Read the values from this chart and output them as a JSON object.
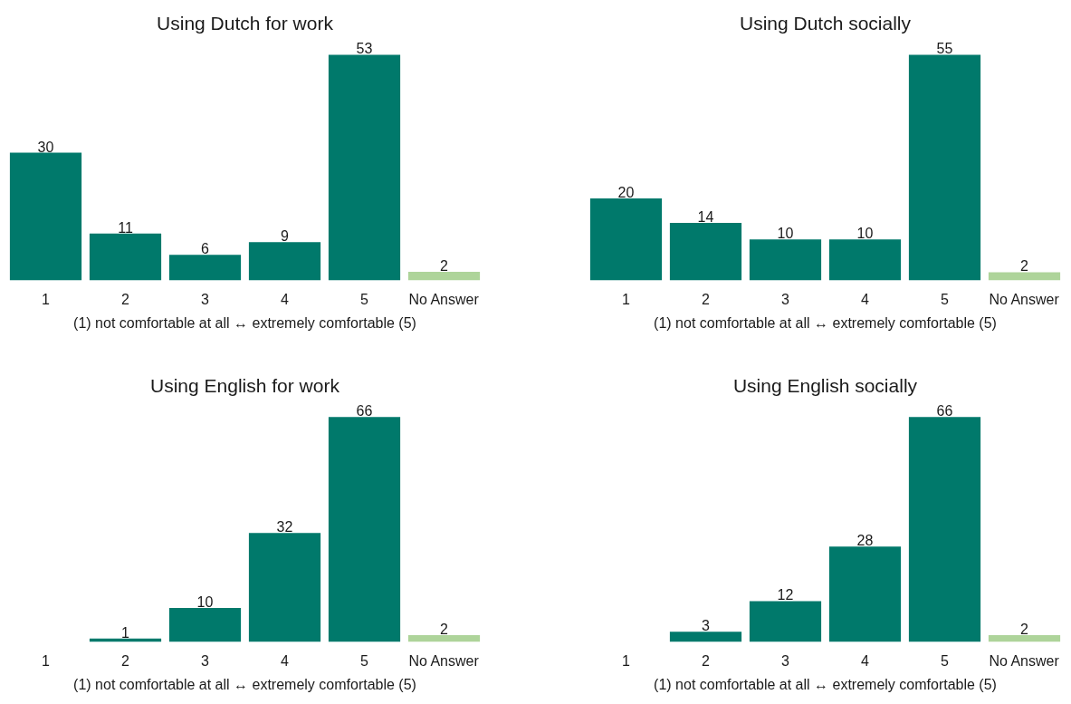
{
  "chart_data": [
    {
      "type": "bar",
      "title": "Using Dutch for work",
      "xlabel": "(1) not comfortable at all ↔ extremely comfortable (5)",
      "categories": [
        "1",
        "2",
        "3",
        "4",
        "5",
        "No Answer"
      ],
      "values": [
        30,
        11,
        6,
        9,
        53,
        2
      ],
      "colors": [
        "#00796b",
        "#00796b",
        "#00796b",
        "#00796b",
        "#00796b",
        "#aed49a"
      ],
      "data_labels": true
    },
    {
      "type": "bar",
      "title": "Using Dutch socially",
      "xlabel": "(1) not comfortable at all ↔ extremely comfortable (5)",
      "categories": [
        "1",
        "2",
        "3",
        "4",
        "5",
        "No Answer"
      ],
      "values": [
        20,
        14,
        10,
        10,
        55,
        2
      ],
      "colors": [
        "#00796b",
        "#00796b",
        "#00796b",
        "#00796b",
        "#00796b",
        "#aed49a"
      ],
      "data_labels": true
    },
    {
      "type": "bar",
      "title": "Using English for work",
      "xlabel": "(1) not comfortable at all ↔ extremely comfortable (5)",
      "categories": [
        "1",
        "2",
        "3",
        "4",
        "5",
        "No Answer"
      ],
      "values": [
        null,
        1,
        10,
        32,
        66,
        2
      ],
      "colors": [
        "#00796b",
        "#00796b",
        "#00796b",
        "#00796b",
        "#00796b",
        "#aed49a"
      ],
      "data_labels": true
    },
    {
      "type": "bar",
      "title": "Using English socially",
      "xlabel": "(1) not comfortable at all ↔ extremely comfortable (5)",
      "categories": [
        "1",
        "2",
        "3",
        "4",
        "5",
        "No Answer"
      ],
      "values": [
        null,
        3,
        12,
        28,
        66,
        2
      ],
      "colors": [
        "#00796b",
        "#00796b",
        "#00796b",
        "#00796b",
        "#00796b",
        "#aed49a"
      ],
      "data_labels": true
    }
  ]
}
